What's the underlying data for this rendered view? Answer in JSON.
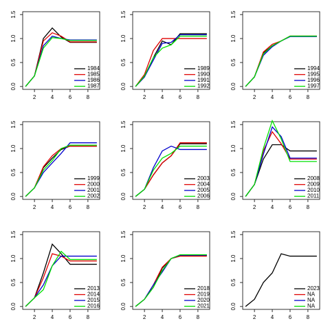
{
  "chart_data": [
    {
      "type": "line",
      "x": [
        1,
        2,
        3,
        4,
        5,
        6,
        7,
        8,
        9
      ],
      "xlim": [
        0.68,
        9.32
      ],
      "ylim": [
        -0.06,
        1.56
      ],
      "xticks": [
        2,
        4,
        6,
        8
      ],
      "yticks": [
        {
          "value": 0,
          "label": "0.0"
        },
        0.5,
        {
          "value": 1,
          "label": "1.0"
        },
        1.5
      ],
      "legend": "bottomright",
      "series": [
        {
          "name": "1984",
          "color": "#000000",
          "values": [
            0,
            0.22,
            1.0,
            1.22,
            1.03,
            0.92,
            0.92,
            0.92,
            0.92
          ]
        },
        {
          "name": "1985",
          "color": "#df0000",
          "values": [
            0,
            0.22,
            0.95,
            1.12,
            1.05,
            0.93,
            0.93,
            0.93,
            0.93
          ]
        },
        {
          "name": "1986",
          "color": "#0000cd",
          "values": [
            0,
            0.22,
            0.85,
            1.05,
            1.0,
            0.97,
            0.97,
            0.97,
            0.97
          ]
        },
        {
          "name": "1987",
          "color": "#00e000",
          "values": [
            0,
            0.22,
            0.8,
            1.02,
            1.0,
            0.96,
            0.96,
            0.96,
            0.96
          ]
        }
      ]
    },
    {
      "type": "line",
      "x": [
        1,
        2,
        3,
        4,
        5,
        6,
        7,
        8,
        9
      ],
      "xlim": [
        0.68,
        9.32
      ],
      "ylim": [
        -0.06,
        1.56
      ],
      "xticks": [
        2,
        4,
        6,
        8
      ],
      "yticks": [
        {
          "value": 0,
          "label": "0.0"
        },
        0.5,
        {
          "value": 1,
          "label": "1.0"
        },
        1.5
      ],
      "legend": "bottomright",
      "series": [
        {
          "name": "1989",
          "color": "#000000",
          "values": [
            0,
            0.2,
            0.6,
            0.95,
            0.87,
            1.1,
            1.1,
            1.1,
            1.1
          ]
        },
        {
          "name": "1990",
          "color": "#df0000",
          "values": [
            0,
            0.25,
            0.75,
            1.0,
            1.0,
            1.0,
            1.0,
            1.0,
            1.0
          ]
        },
        {
          "name": "1991",
          "color": "#0000cd",
          "values": [
            0,
            0.2,
            0.55,
            0.9,
            0.92,
            1.08,
            1.08,
            1.08,
            1.08
          ]
        },
        {
          "name": "1992",
          "color": "#00e000",
          "values": [
            0,
            0.22,
            0.6,
            0.8,
            0.87,
            1.05,
            1.05,
            1.05,
            1.05
          ]
        }
      ]
    },
    {
      "type": "line",
      "x": [
        1,
        2,
        3,
        4,
        5,
        6,
        7,
        8,
        9
      ],
      "xlim": [
        0.68,
        9.32
      ],
      "ylim": [
        -0.06,
        1.56
      ],
      "xticks": [
        2,
        4,
        6,
        8
      ],
      "yticks": [
        {
          "value": 0,
          "label": "0.0"
        },
        0.5,
        {
          "value": 1,
          "label": "1.0"
        },
        1.5
      ],
      "legend": "bottomright",
      "series": [
        {
          "name": "1994",
          "color": "#000000",
          "values": [
            0,
            0.2,
            0.7,
            0.85,
            0.95,
            1.05,
            1.05,
            1.05,
            1.05
          ]
        },
        {
          "name": "1995",
          "color": "#df0000",
          "values": [
            0,
            0.2,
            0.72,
            0.88,
            0.95,
            1.05,
            1.05,
            1.05,
            1.05
          ]
        },
        {
          "name": "1996",
          "color": "#0000cd",
          "values": [
            0,
            0.2,
            0.65,
            0.83,
            0.95,
            1.04,
            1.04,
            1.04,
            1.04
          ]
        },
        {
          "name": "1997",
          "color": "#00e000",
          "values": [
            0,
            0.2,
            0.68,
            0.85,
            0.95,
            1.05,
            1.05,
            1.05,
            1.05
          ]
        }
      ]
    },
    {
      "type": "line",
      "x": [
        1,
        2,
        3,
        4,
        5,
        6,
        7,
        8,
        9
      ],
      "xlim": [
        0.68,
        9.32
      ],
      "ylim": [
        -0.06,
        1.56
      ],
      "xticks": [
        2,
        4,
        6,
        8
      ],
      "yticks": [
        {
          "value": 0,
          "label": "0.0"
        },
        0.5,
        {
          "value": 1,
          "label": "1.0"
        },
        1.5
      ],
      "legend": "bottomright",
      "series": [
        {
          "name": "1999",
          "color": "#000000",
          "values": [
            0,
            0.18,
            0.6,
            0.8,
            0.98,
            1.05,
            1.05,
            1.05,
            1.05
          ]
        },
        {
          "name": "2000",
          "color": "#df0000",
          "values": [
            0,
            0.18,
            0.62,
            0.85,
            1.0,
            1.05,
            1.05,
            1.05,
            1.05
          ]
        },
        {
          "name": "2001",
          "color": "#0000cd",
          "values": [
            0,
            0.18,
            0.5,
            0.7,
            0.9,
            1.12,
            1.12,
            1.12,
            1.12
          ]
        },
        {
          "name": "2002",
          "color": "#00e000",
          "values": [
            0,
            0.18,
            0.55,
            0.75,
            1.0,
            1.07,
            1.07,
            1.07,
            1.07
          ]
        }
      ]
    },
    {
      "type": "line",
      "x": [
        1,
        2,
        3,
        4,
        5,
        6,
        7,
        8,
        9
      ],
      "xlim": [
        0.68,
        9.32
      ],
      "ylim": [
        -0.06,
        1.56
      ],
      "xticks": [
        2,
        4,
        6,
        8
      ],
      "yticks": [
        {
          "value": 0,
          "label": "0.0"
        },
        0.5,
        {
          "value": 1,
          "label": "1.0"
        },
        1.5
      ],
      "legend": "bottomright",
      "series": [
        {
          "name": "2003",
          "color": "#000000",
          "values": [
            0,
            0.15,
            0.45,
            0.7,
            0.85,
            1.1,
            1.1,
            1.1,
            1.1
          ]
        },
        {
          "name": "2004",
          "color": "#df0000",
          "values": [
            0,
            0.15,
            0.45,
            0.7,
            0.85,
            1.12,
            1.12,
            1.12,
            1.12
          ]
        },
        {
          "name": "2005",
          "color": "#0000cd",
          "values": [
            0,
            0.15,
            0.6,
            0.95,
            1.05,
            0.98,
            0.98,
            0.98,
            0.98
          ]
        },
        {
          "name": "2006",
          "color": "#00e000",
          "values": [
            0,
            0.15,
            0.55,
            0.8,
            0.9,
            1.05,
            1.05,
            1.05,
            1.05
          ]
        }
      ]
    },
    {
      "type": "line",
      "x": [
        1,
        2,
        3,
        4,
        5,
        6,
        7,
        8,
        9
      ],
      "xlim": [
        0.68,
        9.32
      ],
      "ylim": [
        -0.06,
        1.56
      ],
      "xticks": [
        2,
        4,
        6,
        8
      ],
      "yticks": [
        {
          "value": 0,
          "label": "0.0"
        },
        0.5,
        {
          "value": 1,
          "label": "1.0"
        },
        1.5
      ],
      "legend": "bottomright",
      "series": [
        {
          "name": "2008",
          "color": "#000000",
          "values": [
            0,
            0.25,
            0.78,
            1.08,
            1.08,
            0.95,
            0.95,
            0.95,
            0.95
          ]
        },
        {
          "name": "2009",
          "color": "#df0000",
          "values": [
            0,
            0.25,
            0.95,
            1.35,
            1.1,
            0.78,
            0.78,
            0.78,
            0.78
          ]
        },
        {
          "name": "2010",
          "color": "#0000cd",
          "values": [
            0,
            0.25,
            0.88,
            1.45,
            1.25,
            0.8,
            0.8,
            0.8,
            0.8
          ]
        },
        {
          "name": "2011",
          "color": "#00e000",
          "values": [
            0,
            0.25,
            1.0,
            1.58,
            1.2,
            0.73,
            0.73,
            0.73,
            0.73
          ]
        }
      ]
    },
    {
      "type": "line",
      "x": [
        1,
        2,
        3,
        4,
        5,
        6,
        7,
        8,
        9
      ],
      "xlim": [
        0.68,
        9.32
      ],
      "ylim": [
        -0.06,
        1.56
      ],
      "xticks": [
        2,
        4,
        6,
        8
      ],
      "yticks": [
        {
          "value": 0,
          "label": "0.0"
        },
        0.5,
        {
          "value": 1,
          "label": "1.0"
        },
        1.5
      ],
      "legend": "bottomright",
      "series": [
        {
          "name": "2013",
          "color": "#000000",
          "values": [
            0,
            0.18,
            0.7,
            1.3,
            1.1,
            0.88,
            0.88,
            0.88,
            0.88
          ]
        },
        {
          "name": "2014",
          "color": "#df0000",
          "values": [
            0,
            0.18,
            0.6,
            1.1,
            1.05,
            0.95,
            0.95,
            0.95,
            0.95
          ]
        },
        {
          "name": "2015",
          "color": "#0000cd",
          "values": [
            0,
            0.18,
            0.45,
            0.85,
            1.05,
            1.05,
            1.05,
            1.05,
            1.05
          ]
        },
        {
          "name": "2016",
          "color": "#00e000",
          "values": [
            0,
            0.18,
            0.35,
            0.85,
            1.15,
            0.98,
            0.98,
            0.98,
            0.98
          ]
        }
      ]
    },
    {
      "type": "line",
      "x": [
        1,
        2,
        3,
        4,
        5,
        6,
        7,
        8,
        9
      ],
      "xlim": [
        0.68,
        9.32
      ],
      "ylim": [
        -0.06,
        1.56
      ],
      "xticks": [
        2,
        4,
        6,
        8
      ],
      "yticks": [
        {
          "value": 0,
          "label": "0.0"
        },
        0.5,
        {
          "value": 1,
          "label": "1.0"
        },
        1.5
      ],
      "legend": "bottomright",
      "series": [
        {
          "name": "2018",
          "color": "#000000",
          "values": [
            0,
            0.15,
            0.4,
            0.8,
            1.0,
            1.07,
            1.07,
            1.07,
            1.07
          ]
        },
        {
          "name": "2019",
          "color": "#df0000",
          "values": [
            0,
            0.15,
            0.45,
            0.82,
            1.0,
            1.05,
            1.05,
            1.05,
            1.05
          ]
        },
        {
          "name": "2020",
          "color": "#0000cd",
          "values": [
            0,
            0.15,
            0.45,
            0.72,
            1.0,
            1.07,
            1.07,
            1.07,
            1.07
          ]
        },
        {
          "name": "2021",
          "color": "#00e000",
          "values": [
            0,
            0.15,
            0.4,
            0.75,
            1.0,
            1.08,
            1.08,
            1.08,
            1.08
          ]
        }
      ]
    },
    {
      "type": "line",
      "x": [
        1,
        2,
        3,
        4,
        5,
        6,
        7,
        8,
        9
      ],
      "xlim": [
        0.68,
        9.32
      ],
      "ylim": [
        -0.06,
        1.56
      ],
      "xticks": [
        2,
        4,
        6,
        8
      ],
      "yticks": [
        {
          "value": 0,
          "label": "0.0"
        },
        0.5,
        {
          "value": 1,
          "label": "1.0"
        },
        1.5
      ],
      "legend": "bottomright",
      "series": [
        {
          "name": "2023",
          "color": "#000000",
          "values": [
            0,
            0.15,
            0.5,
            0.7,
            1.1,
            1.05,
            1.05,
            1.05,
            1.05
          ]
        },
        {
          "name": "NA",
          "color": "#df0000",
          "values": [
            null,
            null,
            null,
            null,
            null,
            null,
            null,
            null,
            null
          ]
        },
        {
          "name": "NA",
          "color": "#0000cd",
          "values": [
            null,
            null,
            null,
            null,
            null,
            null,
            null,
            null,
            null
          ]
        },
        {
          "name": "NA",
          "color": "#00e000",
          "values": [
            null,
            null,
            null,
            null,
            null,
            null,
            null,
            null,
            null
          ]
        }
      ]
    }
  ]
}
